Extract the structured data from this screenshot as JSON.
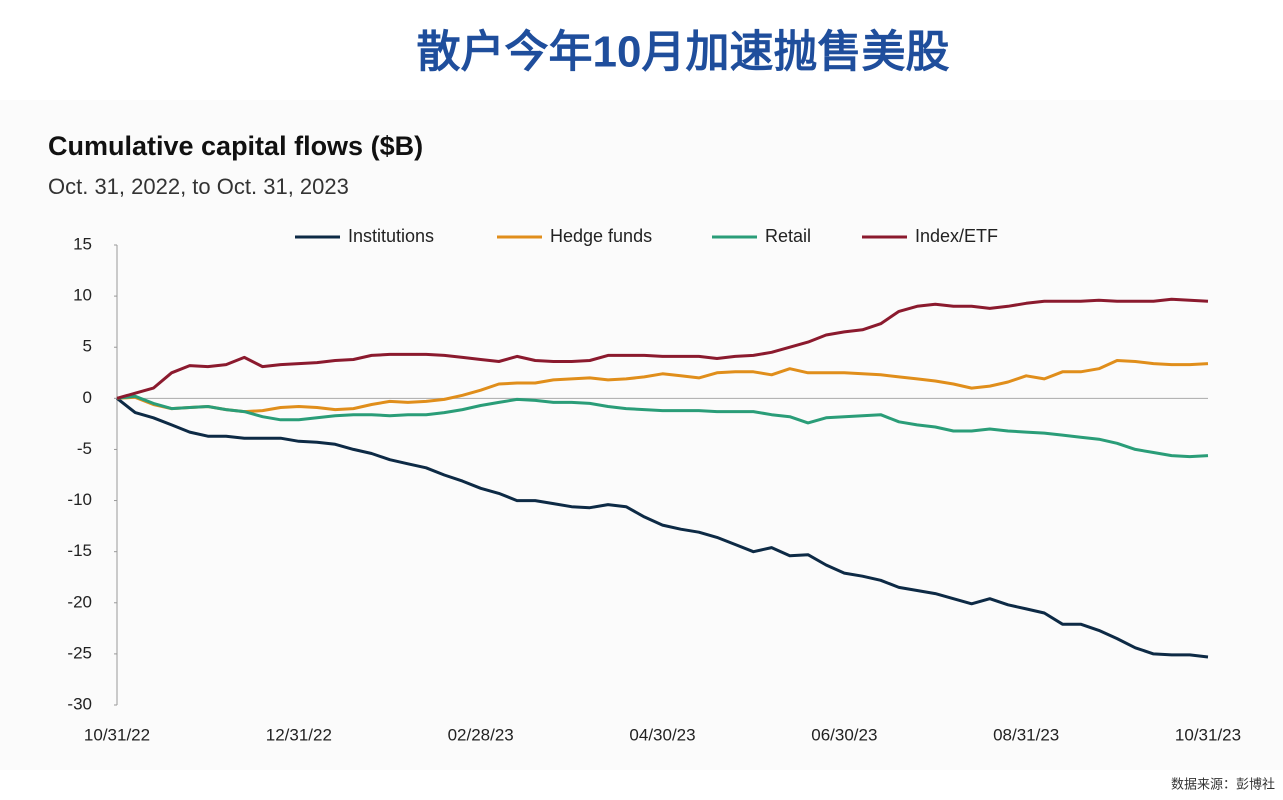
{
  "header": {
    "title": "散户今年10月加速抛售美股"
  },
  "chart_data": {
    "type": "line",
    "title": "Cumulative capital flows ($B)",
    "subtitle": "Oct. 31, 2022, to Oct. 31, 2023",
    "categories": [
      "10/31/22",
      null,
      null,
      null,
      null,
      null,
      null,
      null,
      null,
      null,
      "12/31/22",
      null,
      null,
      null,
      null,
      null,
      null,
      null,
      null,
      null,
      "02/28/23",
      null,
      null,
      null,
      null,
      null,
      null,
      null,
      null,
      null,
      "04/30/23",
      null,
      null,
      null,
      null,
      null,
      null,
      null,
      null,
      null,
      "06/30/23",
      null,
      null,
      null,
      null,
      null,
      null,
      null,
      null,
      null,
      "08/31/23",
      null,
      null,
      null,
      null,
      null,
      null,
      null,
      null,
      null,
      "10/31/23"
    ],
    "series": [
      {
        "name": "Institutions",
        "color": "#0d2a45",
        "values": [
          0,
          -1.4,
          -1.9,
          -2.6,
          -3.3,
          -3.7,
          -3.7,
          -3.9,
          -3.9,
          -3.9,
          -4.2,
          -4.3,
          -4.5,
          -5.0,
          -5.4,
          -6.0,
          -6.4,
          -6.8,
          -7.5,
          -8.1,
          -8.8,
          -9.3,
          -10.0,
          -10.0,
          -10.3,
          -10.6,
          -10.7,
          -10.4,
          -10.6,
          -11.6,
          -12.4,
          -12.8,
          -13.1,
          -13.6,
          -14.3,
          -15.0,
          -14.6,
          -15.4,
          -15.3,
          -16.3,
          -17.1,
          -17.4,
          -17.8,
          -18.5,
          -18.8,
          -19.1,
          -19.6,
          -20.1,
          -19.6,
          -20.2,
          -20.6,
          -21.0,
          -22.1,
          -22.1,
          -22.7,
          -23.5,
          -24.4,
          -25.0,
          -25.1,
          -25.1,
          -25.3
        ]
      },
      {
        "name": "Hedge funds",
        "color": "#e08e1b",
        "values": [
          0,
          0.1,
          -0.6,
          -1.0,
          -0.9,
          -0.8,
          -1.1,
          -1.3,
          -1.2,
          -0.9,
          -0.8,
          -0.9,
          -1.1,
          -1.0,
          -0.6,
          -0.3,
          -0.4,
          -0.3,
          -0.1,
          0.3,
          0.8,
          1.4,
          1.5,
          1.5,
          1.8,
          1.9,
          2.0,
          1.8,
          1.9,
          2.1,
          2.4,
          2.2,
          2.0,
          2.5,
          2.6,
          2.6,
          2.3,
          2.9,
          2.5,
          2.5,
          2.5,
          2.4,
          2.3,
          2.1,
          1.9,
          1.7,
          1.4,
          1.0,
          1.2,
          1.6,
          2.2,
          1.9,
          2.6,
          2.6,
          2.9,
          3.7,
          3.6,
          3.4,
          3.3,
          3.3,
          3.4
        ]
      },
      {
        "name": "Retail",
        "color": "#2a9d78",
        "values": [
          0,
          0.2,
          -0.5,
          -1.0,
          -0.9,
          -0.8,
          -1.1,
          -1.3,
          -1.8,
          -2.1,
          -2.1,
          -1.9,
          -1.7,
          -1.6,
          -1.6,
          -1.7,
          -1.6,
          -1.6,
          -1.4,
          -1.1,
          -0.7,
          -0.4,
          -0.1,
          -0.2,
          -0.4,
          -0.4,
          -0.5,
          -0.8,
          -1.0,
          -1.1,
          -1.2,
          -1.2,
          -1.2,
          -1.3,
          -1.3,
          -1.3,
          -1.6,
          -1.8,
          -2.4,
          -1.9,
          -1.8,
          -1.7,
          -1.6,
          -2.3,
          -2.6,
          -2.8,
          -3.2,
          -3.2,
          -3.0,
          -3.2,
          -3.3,
          -3.4,
          -3.6,
          -3.8,
          -4.0,
          -4.4,
          -5.0,
          -5.3,
          -5.6,
          -5.7,
          -5.6
        ]
      },
      {
        "name": "Index/ETF",
        "color": "#8b1a2e",
        "values": [
          0,
          0.5,
          1.0,
          2.5,
          3.2,
          3.1,
          3.3,
          4.0,
          3.1,
          3.3,
          3.4,
          3.5,
          3.7,
          3.8,
          4.2,
          4.3,
          4.3,
          4.3,
          4.2,
          4.0,
          3.8,
          3.6,
          4.1,
          3.7,
          3.6,
          3.6,
          3.7,
          4.2,
          4.2,
          4.2,
          4.1,
          4.1,
          4.1,
          3.9,
          4.1,
          4.2,
          4.5,
          5.0,
          5.5,
          6.2,
          6.5,
          6.7,
          7.3,
          8.5,
          9.0,
          9.2,
          9.0,
          9.0,
          8.8,
          9.0,
          9.3,
          9.5,
          9.5,
          9.5,
          9.6,
          9.5,
          9.5,
          9.5,
          9.7,
          9.6,
          9.5
        ]
      }
    ],
    "ylim": [
      -30,
      15
    ],
    "yticks": [
      -30,
      -25,
      -20,
      -15,
      -10,
      -5,
      0,
      5,
      10,
      15
    ],
    "zero_line": true,
    "legend": "top"
  },
  "footer": {
    "source": "数据来源：彭博社"
  }
}
